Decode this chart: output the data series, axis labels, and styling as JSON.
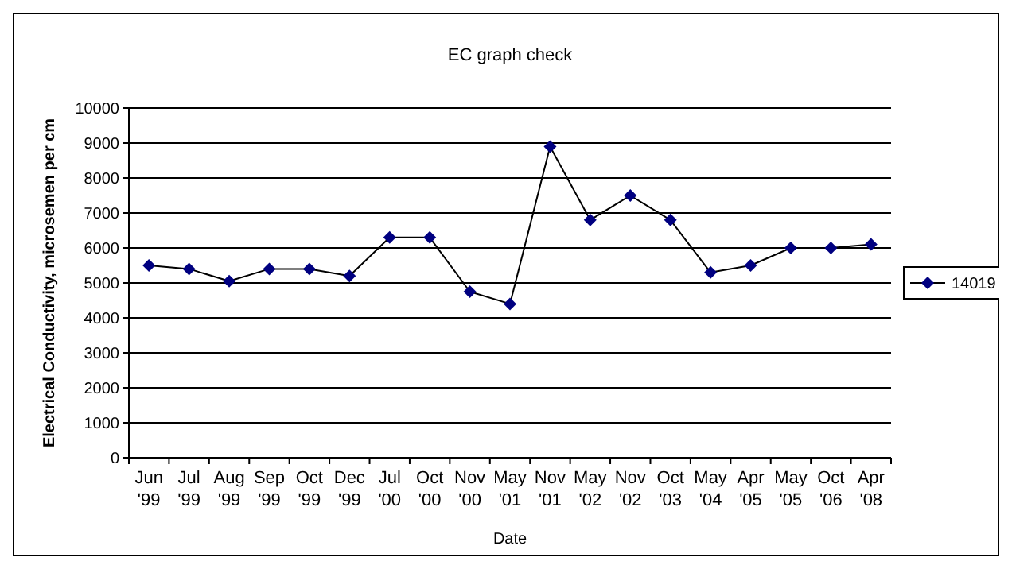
{
  "chart_data": {
    "type": "line",
    "title": "EC graph check",
    "xlabel": "Date",
    "ylabel": "Electrical Conductivity, microsemen per cm",
    "categories": [
      "Jun '99",
      "Jul '99",
      "Aug '99",
      "Sep '99",
      "Oct '99",
      "Dec '99",
      "Jul '00",
      "Oct '00",
      "Nov '00",
      "May '01",
      "Nov '01",
      "May '02",
      "Nov '02",
      "Oct '03",
      "May '04",
      "Apr '05",
      "May '05",
      "Oct '06",
      "Apr '08"
    ],
    "series": [
      {
        "name": "14019",
        "color": "#000080",
        "values": [
          5500,
          5400,
          5050,
          5400,
          5400,
          5200,
          6300,
          6300,
          4750,
          4400,
          8900,
          6800,
          7500,
          6800,
          5300,
          5500,
          6000,
          6000,
          6100
        ]
      }
    ],
    "ylim": [
      0,
      10000
    ],
    "yticks": [
      0,
      1000,
      2000,
      3000,
      4000,
      5000,
      6000,
      7000,
      8000,
      9000,
      10000
    ],
    "grid": "y",
    "legend": "right",
    "marker": "diamond",
    "line_style": "solid"
  }
}
